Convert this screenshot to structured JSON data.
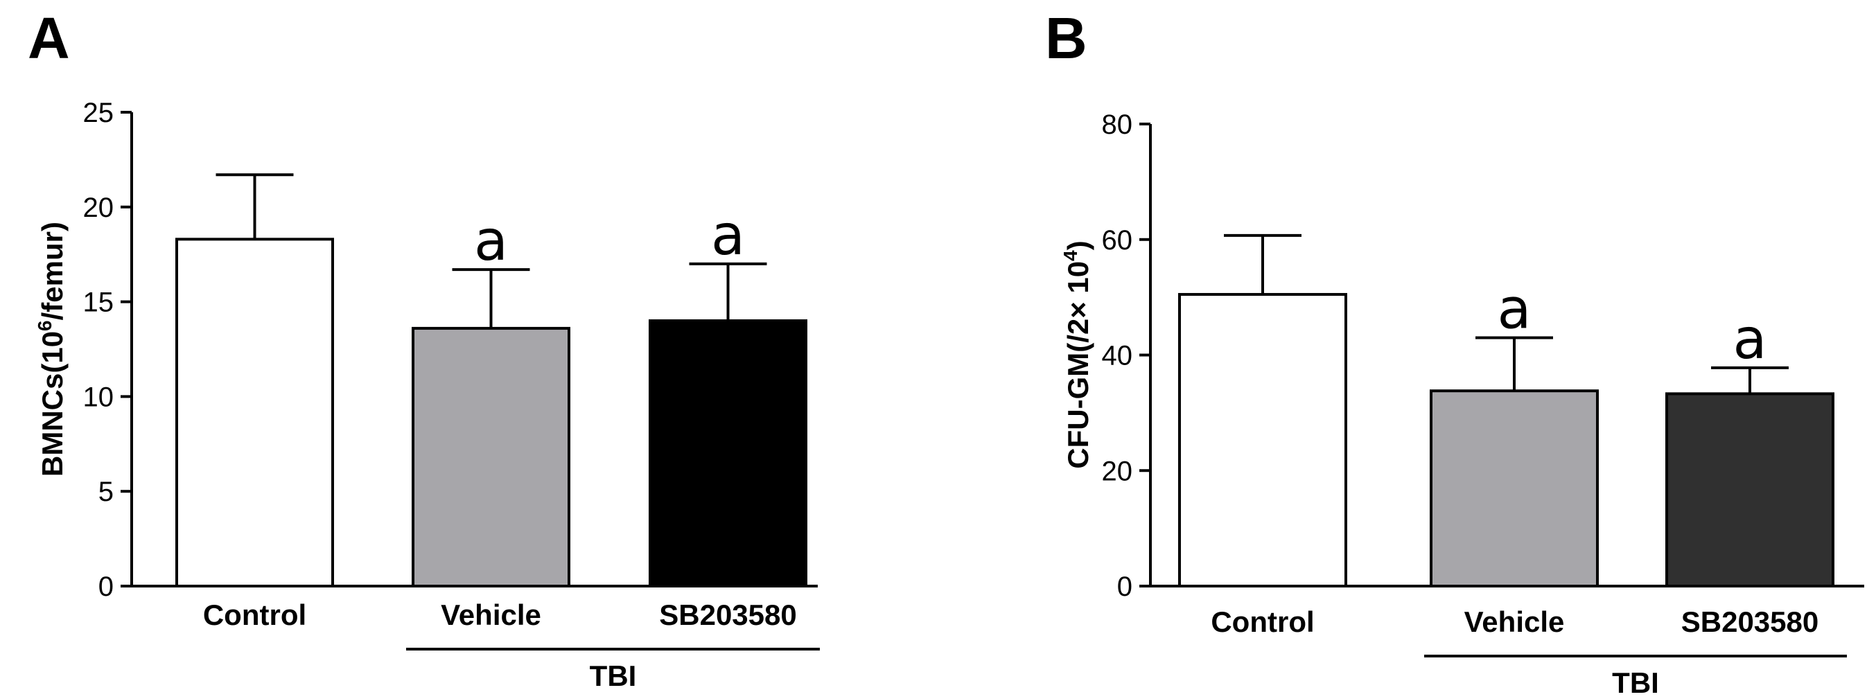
{
  "chart_data": [
    {
      "type": "bar",
      "panel": "A",
      "categories": [
        "Control",
        "Vehicle",
        "SB203580"
      ],
      "group_label": "TBI",
      "group_members": [
        "Vehicle",
        "SB203580"
      ],
      "values": [
        18.3,
        13.6,
        14.0
      ],
      "errors": [
        3.4,
        3.1,
        3.0
      ],
      "significance": [
        "",
        "a",
        "a"
      ],
      "colors": [
        "#ffffff",
        "#a7a6aa",
        "#000000"
      ],
      "ylabel": {
        "main": "BMNCs(10",
        "sup": "6",
        "tail": "/femur)"
      },
      "ylim": [
        0,
        25
      ],
      "yticks": [
        0,
        5,
        10,
        15,
        20,
        25
      ]
    },
    {
      "type": "bar",
      "panel": "B",
      "categories": [
        "Control",
        "Vehicle",
        "SB203580"
      ],
      "group_label": "TBI",
      "group_members": [
        "Vehicle",
        "SB203580"
      ],
      "values": [
        50.5,
        33.8,
        33.3
      ],
      "errors": [
        10.2,
        9.2,
        4.5
      ],
      "significance": [
        "",
        "a",
        "a"
      ],
      "colors": [
        "#ffffff",
        "#a7a6aa",
        "#303030"
      ],
      "ylabel": {
        "main": "CFU-GM(/2× 10",
        "sup": "4",
        "tail": ")"
      },
      "ylim": [
        0,
        80
      ],
      "yticks": [
        0,
        20,
        40,
        60,
        80
      ]
    }
  ]
}
